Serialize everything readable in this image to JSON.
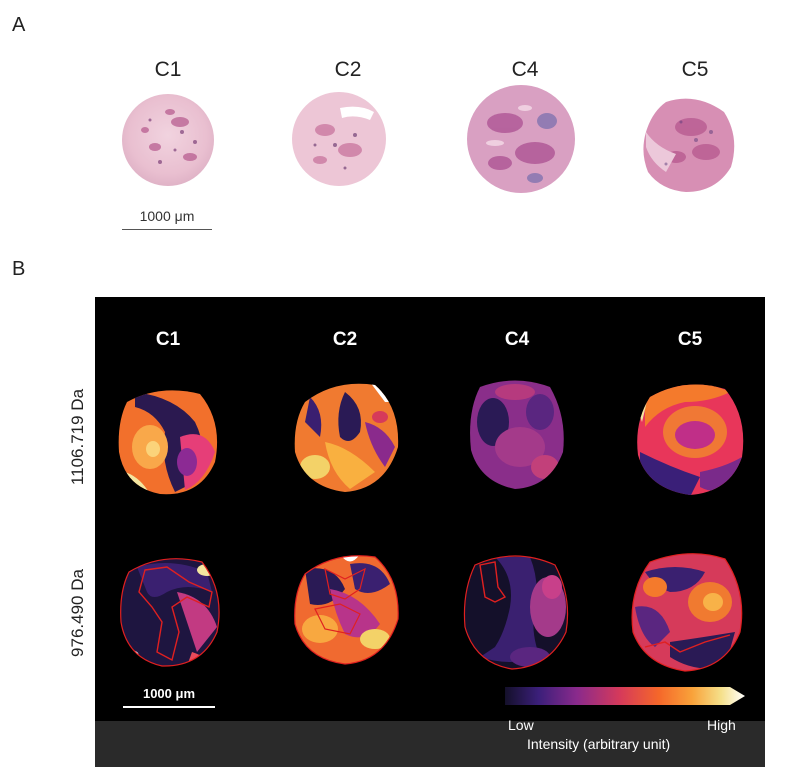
{
  "panel_a": {
    "letter": "A",
    "cores": [
      {
        "label": "C1"
      },
      {
        "label": "C2"
      },
      {
        "label": "C4"
      },
      {
        "label": "C5"
      }
    ],
    "scale_bar": "1000 μm"
  },
  "panel_b": {
    "letter": "B",
    "cores": [
      {
        "label": "C1"
      },
      {
        "label": "C2"
      },
      {
        "label": "C4"
      },
      {
        "label": "C5"
      }
    ],
    "rows": [
      {
        "mass": "1106.719 Da"
      },
      {
        "mass": "976.490 Da"
      }
    ],
    "scale_bar": "1000 μm",
    "colorbar": {
      "low": "Low",
      "high": "High",
      "title": "Intensity (arbitrary unit)",
      "colors": [
        "#14102a",
        "#3b1f7a",
        "#8a2a8c",
        "#d63a5a",
        "#f5672a",
        "#f9a23a",
        "#f5e08a",
        "#ffffff"
      ]
    },
    "outline_color": "#e02020"
  }
}
